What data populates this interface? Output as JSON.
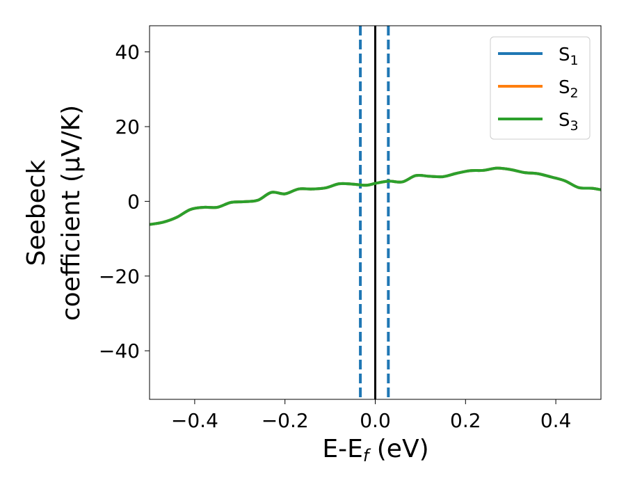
{
  "chart_data": {
    "type": "line",
    "xlabel": "E-E",
    "xlabel_sub": "f",
    "xlabel_unit": " (eV)",
    "ylabel_line1": "Seebeck",
    "ylabel_line2": "coefficient  (μV/K)",
    "xlim": [
      -0.5,
      0.5
    ],
    "ylim": [
      -53,
      47
    ],
    "xticks": [
      -0.4,
      -0.2,
      0.0,
      0.2,
      0.4
    ],
    "xtick_labels": [
      "−0.4",
      "−0.2",
      "0.0",
      "0.2",
      "0.4"
    ],
    "yticks": [
      40,
      20,
      0,
      -20,
      -40
    ],
    "ytick_labels": [
      "40",
      "20",
      "0",
      "−20",
      "−40"
    ],
    "grid": false,
    "legend_position": "top-right",
    "series": [
      {
        "name": "S",
        "name_sub": "1",
        "color": "#1f77b4",
        "x": [
          -0.5,
          -0.47,
          -0.44,
          -0.41,
          -0.38,
          -0.35,
          -0.32,
          -0.29,
          -0.26,
          -0.23,
          -0.2,
          -0.17,
          -0.14,
          -0.11,
          -0.08,
          -0.05,
          -0.02,
          0.0,
          0.03,
          0.06,
          0.09,
          0.12,
          0.15,
          0.18,
          0.21,
          0.24,
          0.27,
          0.3,
          0.33,
          0.36,
          0.39,
          0.42,
          0.45,
          0.48,
          0.5
        ],
        "values": [
          -6.2,
          -5.6,
          -4.3,
          -2.2,
          -1.6,
          -1.6,
          -0.3,
          -0.1,
          0.3,
          2.4,
          2.0,
          3.3,
          3.3,
          3.6,
          4.7,
          4.6,
          4.3,
          4.8,
          5.4,
          5.2,
          6.9,
          6.7,
          6.6,
          7.5,
          8.2,
          8.3,
          8.9,
          8.5,
          7.7,
          7.4,
          6.5,
          5.5,
          3.7,
          3.5,
          3.1
        ]
      },
      {
        "name": "S",
        "name_sub": "2",
        "color": "#ff7f0e",
        "x": [
          -0.5,
          -0.47,
          -0.44,
          -0.41,
          -0.38,
          -0.35,
          -0.32,
          -0.29,
          -0.26,
          -0.23,
          -0.2,
          -0.17,
          -0.14,
          -0.11,
          -0.08,
          -0.05,
          -0.02,
          0.0,
          0.03,
          0.06,
          0.09,
          0.12,
          0.15,
          0.18,
          0.21,
          0.24,
          0.27,
          0.3,
          0.33,
          0.36,
          0.39,
          0.42,
          0.45,
          0.48,
          0.5
        ],
        "values": [
          -6.2,
          -5.6,
          -4.3,
          -2.2,
          -1.6,
          -1.6,
          -0.3,
          -0.1,
          0.3,
          2.4,
          2.0,
          3.3,
          3.3,
          3.6,
          4.7,
          4.6,
          4.3,
          4.8,
          5.4,
          5.2,
          6.9,
          6.7,
          6.6,
          7.5,
          8.2,
          8.3,
          8.9,
          8.5,
          7.7,
          7.4,
          6.5,
          5.5,
          3.7,
          3.5,
          3.1
        ]
      },
      {
        "name": "S",
        "name_sub": "3",
        "color": "#2ca02c",
        "x": [
          -0.5,
          -0.47,
          -0.44,
          -0.41,
          -0.38,
          -0.35,
          -0.32,
          -0.29,
          -0.26,
          -0.23,
          -0.2,
          -0.17,
          -0.14,
          -0.11,
          -0.08,
          -0.05,
          -0.02,
          0.0,
          0.03,
          0.06,
          0.09,
          0.12,
          0.15,
          0.18,
          0.21,
          0.24,
          0.27,
          0.3,
          0.33,
          0.36,
          0.39,
          0.42,
          0.45,
          0.48,
          0.5
        ],
        "values": [
          -6.2,
          -5.6,
          -4.3,
          -2.2,
          -1.6,
          -1.6,
          -0.3,
          -0.1,
          0.3,
          2.4,
          2.0,
          3.3,
          3.3,
          3.6,
          4.7,
          4.6,
          4.3,
          4.8,
          5.4,
          5.2,
          6.9,
          6.7,
          6.6,
          7.5,
          8.2,
          8.3,
          8.9,
          8.5,
          7.7,
          7.4,
          6.5,
          5.5,
          3.7,
          3.5,
          3.1
        ]
      }
    ],
    "vlines": [
      {
        "x": -0.033,
        "style": "dashed",
        "color": "#1f77b4"
      },
      {
        "x": 0.0,
        "style": "solid",
        "color": "#000000"
      },
      {
        "x": 0.029,
        "style": "dashed",
        "color": "#1f77b4"
      }
    ]
  }
}
